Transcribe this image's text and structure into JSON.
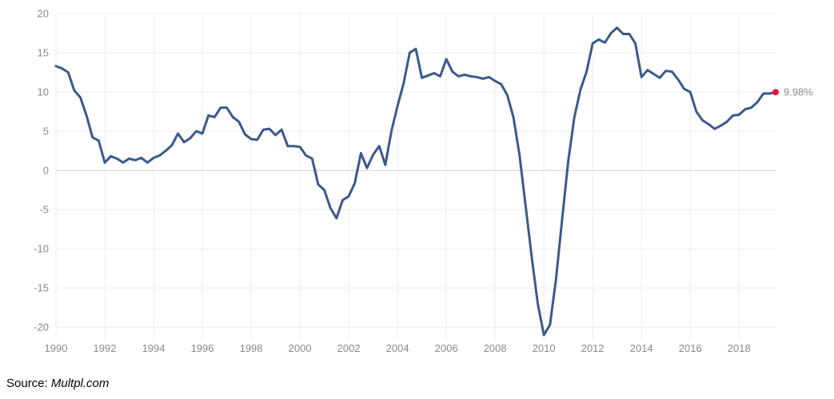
{
  "source": {
    "prefix": "Source: ",
    "value": "Multpl.com"
  },
  "chart_data": {
    "type": "line",
    "title": "",
    "xlabel": "",
    "ylabel": "",
    "xlim": [
      1990,
      2019.5
    ],
    "ylim": [
      -21,
      20
    ],
    "x_ticks": [
      1990,
      1992,
      1994,
      1996,
      1998,
      2000,
      2002,
      2004,
      2006,
      2008,
      2010,
      2012,
      2014,
      2016,
      2018
    ],
    "y_ticks": [
      20,
      15,
      10,
      5,
      0,
      -5,
      -10,
      -15,
      -20
    ],
    "grid": true,
    "legend": "none",
    "line_color": "#3a5a8c",
    "marker_color": "#e8173c",
    "last_value_label": "9.98%",
    "series": [
      {
        "x": [
          1990.0,
          1990.25,
          1990.5,
          1990.75,
          1991.0,
          1991.25,
          1991.5,
          1991.75,
          1992.0,
          1992.25,
          1992.5,
          1992.75,
          1993.0,
          1993.25,
          1993.5,
          1993.75,
          1994.0,
          1994.25,
          1994.5,
          1994.75,
          1995.0,
          1995.25,
          1995.5,
          1995.75,
          1996.0,
          1996.25,
          1996.5,
          1996.75,
          1997.0,
          1997.25,
          1997.5,
          1997.75,
          1998.0,
          1998.25,
          1998.5,
          1998.75,
          1999.0,
          1999.25,
          1999.5,
          1999.75,
          2000.0,
          2000.25,
          2000.5,
          2000.75,
          2001.0,
          2001.25,
          2001.5,
          2001.75,
          2002.0,
          2002.25,
          2002.5,
          2002.75,
          2003.0,
          2003.25,
          2003.5,
          2003.75,
          2004.0,
          2004.25,
          2004.5,
          2004.75,
          2005.0,
          2005.25,
          2005.5,
          2005.75,
          2006.0,
          2006.25,
          2006.5,
          2006.75,
          2007.0,
          2007.25,
          2007.5,
          2007.75,
          2008.0,
          2008.25,
          2008.5,
          2008.75,
          2009.0,
          2009.25,
          2009.5,
          2009.75,
          2010.0,
          2010.25,
          2010.5,
          2010.75,
          2011.0,
          2011.25,
          2011.5,
          2011.75,
          2012.0,
          2012.25,
          2012.5,
          2012.75,
          2013.0,
          2013.25,
          2013.5,
          2013.75,
          2014.0,
          2014.25,
          2014.5,
          2014.75,
          2015.0,
          2015.25,
          2015.5,
          2015.75,
          2016.0,
          2016.25,
          2016.5,
          2016.75,
          2017.0,
          2017.25,
          2017.5,
          2017.75,
          2018.0,
          2018.25,
          2018.5,
          2018.75,
          2019.0,
          2019.25,
          2019.5
        ],
        "y": [
          13.3,
          13.0,
          12.5,
          10.2,
          9.3,
          7.0,
          4.2,
          3.8,
          1.0,
          1.8,
          1.5,
          1.0,
          1.5,
          1.3,
          1.6,
          1.0,
          1.6,
          1.9,
          2.5,
          3.2,
          4.7,
          3.6,
          4.1,
          5.0,
          4.7,
          7.0,
          6.8,
          8.0,
          8.0,
          6.8,
          6.2,
          4.6,
          4.0,
          3.9,
          5.2,
          5.3,
          4.5,
          5.2,
          3.1,
          3.1,
          3.0,
          1.9,
          1.5,
          -1.8,
          -2.5,
          -4.8,
          -6.1,
          -3.8,
          -3.3,
          -1.6,
          2.2,
          0.3,
          2.0,
          3.1,
          0.7,
          5.0,
          8.2,
          11.1,
          15.0,
          15.5,
          11.8,
          12.1,
          12.4,
          12.0,
          14.2,
          12.6,
          12.0,
          12.2,
          12.0,
          11.9,
          11.7,
          11.9,
          11.4,
          11.0,
          9.6,
          6.8,
          2.0,
          -4.5,
          -11.0,
          -17.0,
          -21.0,
          -19.7,
          -13.8,
          -6.2,
          1.2,
          6.8,
          10.3,
          12.6,
          16.2,
          16.7,
          16.3,
          17.5,
          18.2,
          17.4,
          17.4,
          16.2,
          11.9,
          12.8,
          12.3,
          11.8,
          12.7,
          12.6,
          11.6,
          10.4,
          10.0,
          7.5,
          6.4,
          5.9,
          5.3,
          5.7,
          6.2,
          7.0,
          7.1,
          7.8,
          8.0,
          8.7,
          9.8,
          9.8,
          9.98
        ]
      }
    ]
  }
}
